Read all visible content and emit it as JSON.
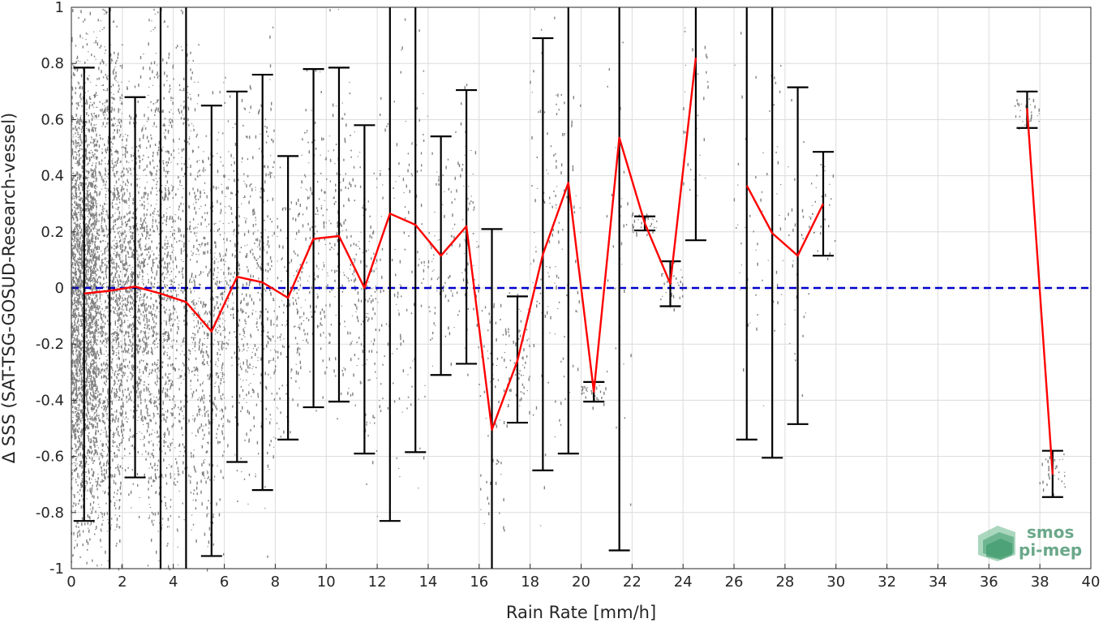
{
  "chart_data": {
    "type": "line",
    "xlabel": "Rain Rate [mm/h]",
    "ylabel": "Δ SSS (SAT-TSG-GOSUD-Research-vessel)",
    "xlim": [
      0,
      40
    ],
    "ylim": [
      -1,
      1
    ],
    "xticks": [
      "0",
      "2",
      "4",
      "6",
      "8",
      "10",
      "12",
      "14",
      "16",
      "18",
      "20",
      "22",
      "24",
      "26",
      "28",
      "30",
      "32",
      "34",
      "36",
      "38",
      "40"
    ],
    "yticks": [
      "-1",
      "-0.8",
      "-0.6",
      "-0.4",
      "-0.2",
      "0",
      "0.2",
      "0.4",
      "0.6",
      "0.8",
      "1"
    ],
    "grid": true,
    "reference_line": {
      "y": 0,
      "color": "#0000cc",
      "style": "dashed"
    },
    "scatter_color": "#808080",
    "mean_color": "#ff0000",
    "errorbar_color": "#000000",
    "mean_segments": [
      {
        "x": [
          0.5,
          1.5,
          2.5,
          3.5,
          4.5,
          5.5,
          6.5,
          7.5,
          8.5,
          9.5,
          10.5,
          11.5,
          12.5,
          13.5,
          14.5,
          15.5,
          16.5,
          17.5,
          18.5,
          19.5,
          20.5,
          21.5,
          22.5,
          23.5,
          24.5
        ],
        "y": [
          -0.02,
          -0.01,
          0.005,
          -0.02,
          -0.05,
          -0.155,
          0.04,
          0.02,
          -0.035,
          0.175,
          0.185,
          0.0,
          0.265,
          0.225,
          0.115,
          0.22,
          -0.505,
          -0.26,
          0.12,
          0.375,
          -0.37,
          0.535,
          0.23,
          0.015,
          0.82
        ]
      },
      {
        "x": [
          26.5,
          27.5,
          28.5,
          29.5
        ],
        "y": [
          0.365,
          0.195,
          0.115,
          0.3
        ]
      },
      {
        "x": [
          37.5,
          38.5
        ],
        "y": [
          0.64,
          -0.665
        ]
      }
    ],
    "error_bars": [
      {
        "x": 0.5,
        "low": -0.83,
        "high": 0.785
      },
      {
        "x": 1.5,
        "low": -1.1,
        "high": 1.1
      },
      {
        "x": 2.5,
        "low": -0.675,
        "high": 0.68
      },
      {
        "x": 3.5,
        "low": -1.1,
        "high": 1.1
      },
      {
        "x": 4.5,
        "low": -1.1,
        "high": 1.1
      },
      {
        "x": 5.5,
        "low": -0.955,
        "high": 0.65
      },
      {
        "x": 6.5,
        "low": -0.62,
        "high": 0.7
      },
      {
        "x": 7.5,
        "low": -0.72,
        "high": 0.76
      },
      {
        "x": 8.5,
        "low": -0.54,
        "high": 0.47
      },
      {
        "x": 9.5,
        "low": -0.425,
        "high": 0.78
      },
      {
        "x": 10.5,
        "low": -0.405,
        "high": 0.785
      },
      {
        "x": 11.5,
        "low": -0.59,
        "high": 0.58
      },
      {
        "x": 12.5,
        "low": -0.83,
        "high": 1.1
      },
      {
        "x": 13.5,
        "low": -0.585,
        "high": 1.1
      },
      {
        "x": 14.5,
        "low": -0.31,
        "high": 0.54
      },
      {
        "x": 15.5,
        "low": -0.27,
        "high": 0.705
      },
      {
        "x": 16.5,
        "low": -1.1,
        "high": 0.21
      },
      {
        "x": 17.5,
        "low": -0.48,
        "high": -0.03
      },
      {
        "x": 18.5,
        "low": -0.65,
        "high": 0.89
      },
      {
        "x": 19.5,
        "low": -0.59,
        "high": 1.1
      },
      {
        "x": 20.5,
        "low": -0.405,
        "high": -0.335
      },
      {
        "x": 21.5,
        "low": -0.935,
        "high": 1.1
      },
      {
        "x": 22.5,
        "low": 0.205,
        "high": 0.255
      },
      {
        "x": 23.5,
        "low": -0.065,
        "high": 0.095
      },
      {
        "x": 24.5,
        "low": 0.17,
        "high": 1.1
      },
      {
        "x": 26.5,
        "low": -0.54,
        "high": 1.1
      },
      {
        "x": 27.5,
        "low": -0.605,
        "high": 1.1
      },
      {
        "x": 28.5,
        "low": -0.485,
        "high": 0.715
      },
      {
        "x": 29.5,
        "low": 0.115,
        "high": 0.485
      },
      {
        "x": 37.5,
        "low": 0.57,
        "high": 0.7
      },
      {
        "x": 38.5,
        "low": -0.745,
        "high": -0.58
      }
    ]
  },
  "logo": {
    "line1": "smos",
    "line2": "pi-mep"
  }
}
